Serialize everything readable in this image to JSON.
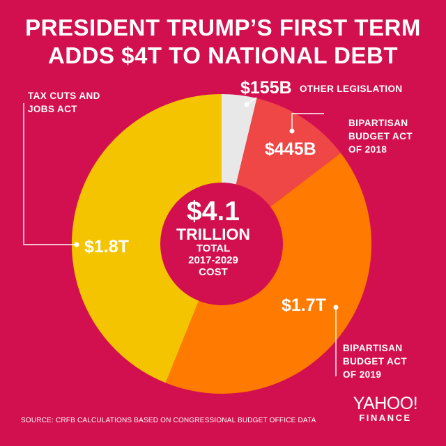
{
  "title": {
    "line1": "PRESIDENT TRUMP’S FIRST TERM",
    "line2": "ADDS $4T TO NATIONAL DEBT"
  },
  "chart_data": {
    "type": "pie",
    "variant": "donut",
    "title": "PRESIDENT TRUMP’S FIRST TERM ADDS $4T TO NATIONAL DEBT",
    "unit": "billions of dollars",
    "slices": [
      {
        "name": "OTHER LEGISLATION",
        "value": 155,
        "value_label": "$155B",
        "color": "#e8e8e8"
      },
      {
        "name": "BIPARTISAN BUDGET ACT OF 2018",
        "value": 445,
        "value_label": "$445B",
        "color": "#ef4646"
      },
      {
        "name": "BIPARTISAN BUDGET ACT OF 2019",
        "value": 1700,
        "value_label": "$1.7T",
        "color": "#ff7a00"
      },
      {
        "name": "TAX CUTS AND JOBS ACT",
        "value": 1800,
        "value_label": "$1.8T",
        "color": "#f4c400"
      }
    ],
    "center": {
      "value": "$4.1",
      "unit": "TRILLION",
      "line1": "TOTAL",
      "line2": "2017-2029",
      "line3": "COST"
    }
  },
  "labels": {
    "other_name": "OTHER LEGISLATION",
    "bba2018_line1": "BIPARTISAN",
    "bba2018_line2": "BUDGET ACT",
    "bba2018_line3": "OF 2018",
    "bba2019_line1": "BIPARTISAN",
    "bba2019_line2": "BUDGET ACT",
    "bba2019_line3": "OF 2019",
    "tcja_line1": "TAX CUTS AND",
    "tcja_line2": "JOBS ACT"
  },
  "source": "SOURCE:  CRFB CALCULATIONS BASED ON CONGRESSIONAL BUDGET OFFICE DATA",
  "logo": {
    "brand": "YAHOO!",
    "sub": "FINANCE"
  },
  "colors": {
    "background": "#d3104f",
    "text": "#ffffff"
  }
}
